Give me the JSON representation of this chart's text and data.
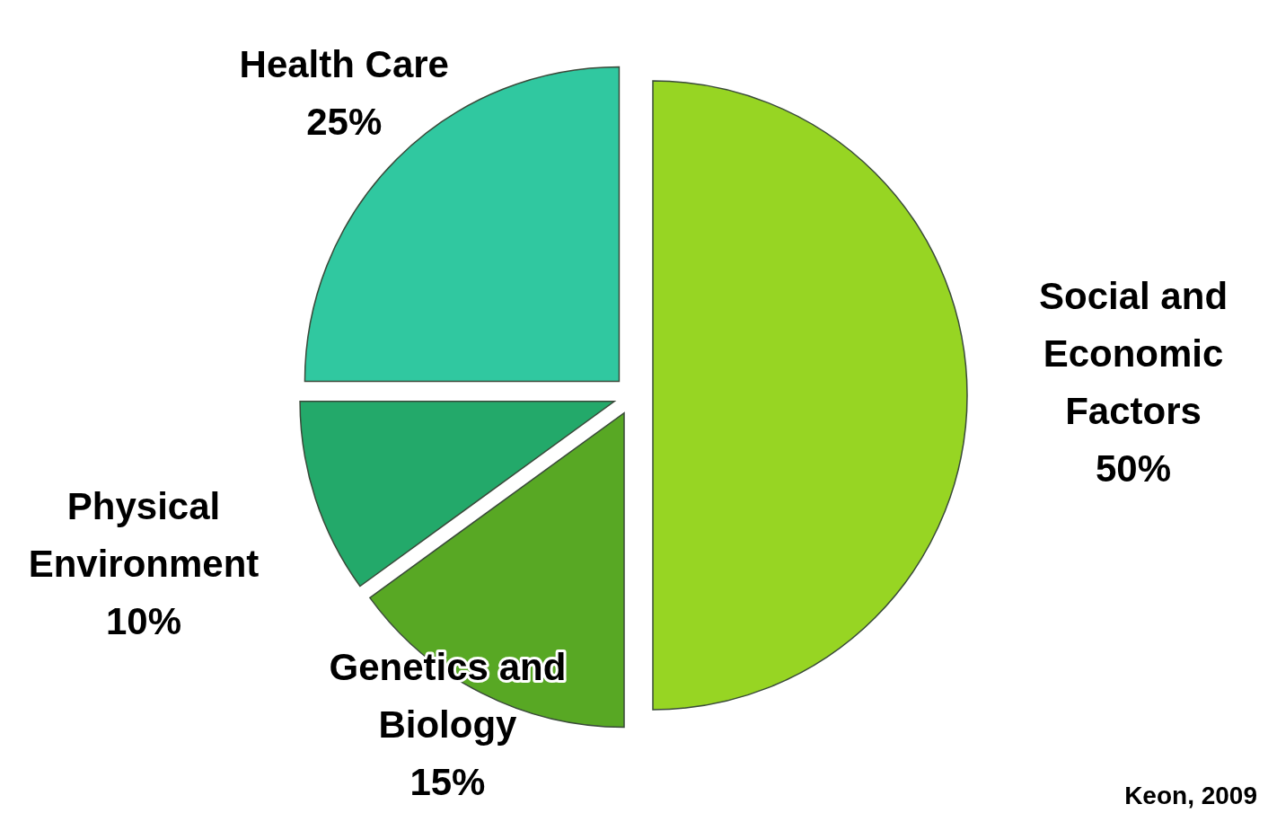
{
  "chart_data": {
    "type": "pie",
    "categories": [
      "Social and Economic Factors",
      "Genetics and Biology",
      "Physical Environment",
      "Health Care"
    ],
    "values": [
      50,
      15,
      10,
      25
    ],
    "value_labels": [
      "50%",
      "15%",
      "10%",
      "25%"
    ],
    "colors": [
      "#97d523",
      "#58a824",
      "#23a96a",
      "#30c8a0"
    ],
    "annotations": [
      "Keon, 2009"
    ]
  }
}
